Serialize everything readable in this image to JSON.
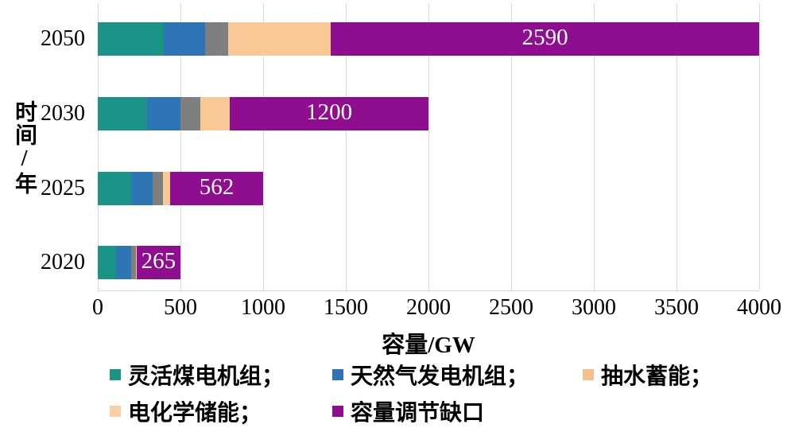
{
  "chart_data": {
    "type": "bar",
    "orientation": "horizontal",
    "stacked": true,
    "xlabel": "容量/GW",
    "ylabel": "时间/年",
    "xlim": [
      0,
      4000
    ],
    "xticks": [
      0,
      500,
      1000,
      1500,
      2000,
      2500,
      3000,
      3500,
      4000
    ],
    "grid": "vertical-gridlines",
    "gridline_color": "#d9d9d9",
    "categories": [
      "2050",
      "2030",
      "2025",
      "2020"
    ],
    "series": [
      {
        "name": "灵活煤电机组",
        "color": "#1B9487",
        "values": [
          400,
          300,
          200,
          110
        ]
      },
      {
        "name": "天然气发电机组",
        "color": "#2E75B6",
        "values": [
          250,
          200,
          130,
          90
        ]
      },
      {
        "name": "抽水蓄能",
        "color": "#7F7F7F",
        "values": [
          140,
          120,
          62,
          31
        ]
      },
      {
        "name": "电化学储能",
        "color": "#F8C996",
        "values": [
          620,
          180,
          46,
          4
        ]
      },
      {
        "name": "容量调节缺口",
        "color": "#8F0E8F",
        "values": [
          2590,
          1200,
          562,
          265
        ]
      }
    ],
    "bar_labels": [
      "2590",
      "1200",
      "562",
      "265"
    ],
    "bar_label_series": "容量调节缺口",
    "bar_label_color": "#FFFFFF",
    "category_totals": [
      4000,
      2000,
      1000,
      500
    ]
  },
  "legend": {
    "rows": [
      [
        {
          "label": "灵活煤电机组；",
          "color": "#1B9487"
        },
        {
          "label": "天然气发电机组；",
          "color": "#2E75B6"
        },
        {
          "label": "抽水蓄能；",
          "color": "#F5BE8D"
        }
      ],
      [
        {
          "label": "电化学储能；",
          "color": "#F8CFA6"
        },
        {
          "label": "容量调节缺口",
          "color": "#8F0E8F"
        }
      ]
    ]
  }
}
